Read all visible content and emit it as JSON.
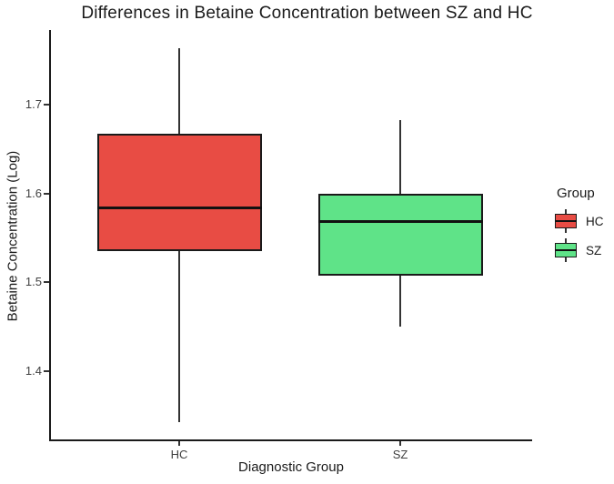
{
  "chart_data": {
    "type": "boxplot",
    "title": "Differences in Betaine Concentration between SZ and HC",
    "xlabel": "Diagnostic Group",
    "ylabel": "Betaine Concentration (Log)",
    "categories": [
      "HC",
      "SZ"
    ],
    "yticks": [
      1.7,
      1.6,
      1.5,
      1.4
    ],
    "ylim": [
      1.33,
      1.785
    ],
    "grid": false,
    "legend": {
      "title": "Group",
      "position": "right",
      "entries": [
        {
          "label": "HC",
          "color": "#E84C44"
        },
        {
          "label": "SZ",
          "color": "#5FE388"
        }
      ]
    },
    "series": [
      {
        "name": "HC",
        "color": "#E84C44",
        "whisker_low": 1.343,
        "q1": 1.535,
        "median": 1.584,
        "q3": 1.667,
        "whisker_high": 1.763
      },
      {
        "name": "SZ",
        "color": "#5FE388",
        "whisker_low": 1.45,
        "q1": 1.508,
        "median": 1.568,
        "q3": 1.6,
        "whisker_high": 1.683
      }
    ]
  }
}
